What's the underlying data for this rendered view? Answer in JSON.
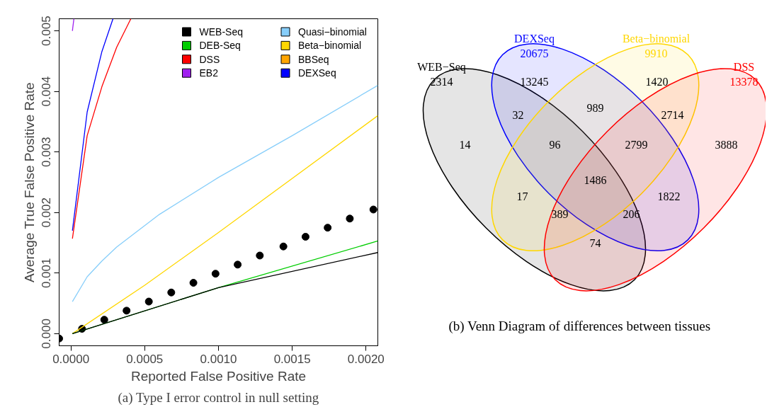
{
  "chart_data": [
    {
      "type": "line",
      "title": "(a) Type I error control in null setting",
      "xlabel": "Reported False Positive Rate",
      "ylabel": "Average True False Positive Rate",
      "xlim": [
        -8e-05,
        0.00208
      ],
      "ylim": [
        -0.0002,
        0.0052
      ],
      "xticks": [
        {
          "value": 0,
          "label": "0.0000"
        },
        {
          "value": 0.0005,
          "label": "0.0005"
        },
        {
          "value": 0.001,
          "label": "0.0010"
        },
        {
          "value": 0.0015,
          "label": "0.0015"
        },
        {
          "value": 0.002,
          "label": "0.0020"
        }
      ],
      "yticks": [
        {
          "value": 0,
          "label": "0.000"
        },
        {
          "value": 0.001,
          "label": "0.001"
        },
        {
          "value": 0.002,
          "label": "0.002"
        },
        {
          "value": 0.003,
          "label": "0.003"
        },
        {
          "value": 0.004,
          "label": "0.004"
        },
        {
          "value": 0.005,
          "label": "0.005"
        }
      ],
      "grid": false,
      "legend": "top right",
      "series": [
        {
          "name": "WEB-Seq",
          "color": "#000000",
          "x": [
            1e-05,
            0.001,
            0.00208
          ],
          "values": [
            0.0,
            0.00076,
            0.00134
          ]
        },
        {
          "name": "DEB-Seq",
          "color": "#00cd00",
          "x": [
            1e-05,
            0.001,
            0.00208
          ],
          "values": [
            0.0,
            0.00076,
            0.00153
          ]
        },
        {
          "name": "DSS",
          "color": "#ff0000",
          "x": [
            1e-05,
            0.00011,
            0.00021,
            0.00031,
            0.000406
          ],
          "values": [
            0.00157,
            0.00327,
            0.00408,
            0.00473,
            0.0052
          ]
        },
        {
          "name": "EB2",
          "color": "#a020f0",
          "x": [
            1e-05,
            2e-05
          ],
          "values": [
            0.005,
            0.0052
          ]
        },
        {
          "name": "Quasi−binomial",
          "color": "#87cefa",
          "x": [
            1e-05,
            0.00011,
            0.00021,
            0.00031,
            0.0006,
            0.001,
            0.0015,
            0.00208
          ],
          "values": [
            0.00053,
            0.00094,
            0.0012,
            0.00143,
            0.00197,
            0.00258,
            0.00327,
            0.0041
          ]
        },
        {
          "name": "Beta−binomial",
          "color": "#ffd700",
          "x": [
            1e-05,
            0.0005,
            0.001,
            0.00208
          ],
          "values": [
            0.0,
            0.0008,
            0.00167,
            0.0036
          ]
        },
        {
          "name": "BBSeq",
          "color": "#ffa500"
        },
        {
          "name": "DEXSeq",
          "color": "#0000ff",
          "x": [
            1e-05,
            0.00011,
            0.00021,
            0.000285
          ],
          "values": [
            0.0017,
            0.00366,
            0.00466,
            0.0052
          ]
        },
        {
          "type": "scatter",
          "marker": "circle",
          "color": "#000000",
          "x": [
            -8e-05,
            7.5e-05,
            0.000226,
            0.000377,
            0.000528,
            0.00068,
            0.00083,
            0.00098,
            0.00113,
            0.00128,
            0.00144,
            0.00159,
            0.00174,
            0.00189,
            0.00205
          ],
          "values": [
            -8e-05,
            8e-05,
            0.00023,
            0.00038,
            0.00053,
            0.00068,
            0.00084,
            0.00099,
            0.00114,
            0.00129,
            0.00144,
            0.0016,
            0.00175,
            0.0019,
            0.00205
          ]
        }
      ]
    },
    {
      "type": "other",
      "title": "(b) Venn Diagram of differences between tissues",
      "categories": [
        "WEB−Seq",
        "DEXSeq",
        "Beta−binomial",
        "DSS"
      ],
      "values": [
        2314,
        20675,
        9910,
        13378
      ],
      "colors": [
        "#000000",
        "#0000ff",
        "#ffd700",
        "#ff0000"
      ],
      "data_labels": true,
      "annotations": [
        "13245",
        "1420",
        "32",
        "989",
        "2714",
        "14",
        "96",
        "2799",
        "3888",
        "1486",
        "17",
        "1822",
        "389",
        "206",
        "74"
      ]
    }
  ]
}
